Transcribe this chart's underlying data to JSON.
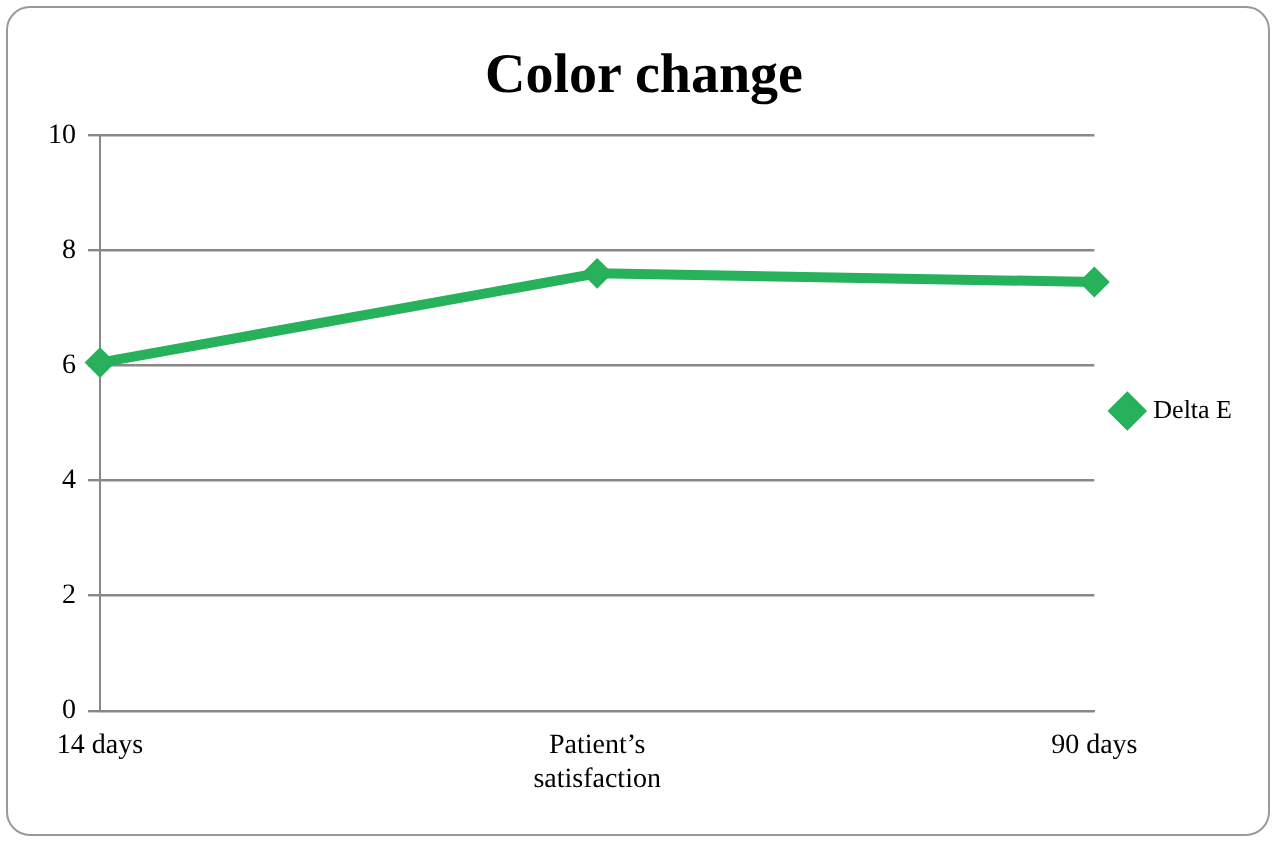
{
  "chart_data": {
    "type": "line",
    "title": "Color change",
    "categories": [
      "14 days",
      "Patient’s satisfaction",
      "90 days"
    ],
    "series": [
      {
        "name": "Delta E",
        "color": "#26b15a",
        "values": [
          6.05,
          7.6,
          7.45
        ]
      }
    ],
    "ylim": [
      0,
      10
    ],
    "yticks": [
      0,
      2,
      4,
      6,
      8,
      10
    ],
    "grid": "y",
    "legend": "right",
    "marker": "diamond",
    "line_style": "solid"
  }
}
